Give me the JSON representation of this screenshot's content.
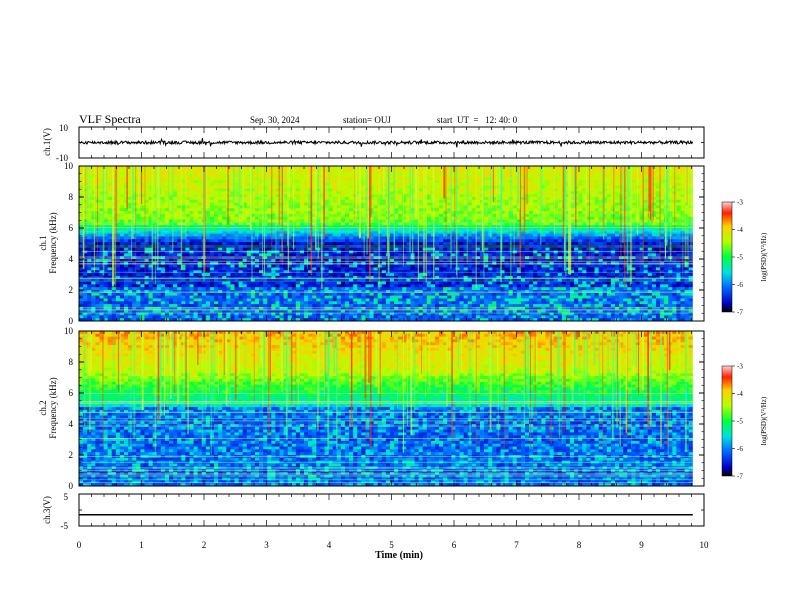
{
  "header": {
    "title": "VLF Spectra",
    "date": "Sep. 30, 2024",
    "station": "station= OUJ",
    "start": "start  UT  =   12: 40: 0"
  },
  "chart_data": [
    {
      "type": "line",
      "name": "ch1-waveform",
      "ylabel": "ch.1(V)",
      "ylim": [
        -10,
        10
      ],
      "yticks": [
        "10",
        "-10"
      ],
      "xlim": [
        0,
        10
      ],
      "baseline": 0
    },
    {
      "type": "heatmap",
      "name": "ch1-spectrogram",
      "ylabel_line1": "ch.1",
      "ylabel_line2": "Frequency (kHz)",
      "xlim": [
        0,
        10
      ],
      "ylim": [
        0,
        10
      ],
      "yticks": [
        "0",
        "2",
        "4",
        "6",
        "8",
        "10"
      ],
      "colorbar": {
        "label": "log(PSD)(V²/Hz)",
        "range": [
          -7,
          -3
        ],
        "ticks": [
          "-3",
          "-4",
          "-5",
          "-6",
          "-7"
        ]
      }
    },
    {
      "type": "heatmap",
      "name": "ch2-spectrogram",
      "ylabel_line1": "ch.2",
      "ylabel_line2": "Frequency (kHz)",
      "xlim": [
        0,
        10
      ],
      "ylim": [
        0,
        10
      ],
      "yticks": [
        "0",
        "2",
        "4",
        "6",
        "8",
        "10"
      ],
      "colorbar": {
        "label": "log(PSD)(V²/Hz)",
        "range": [
          -7,
          -3
        ],
        "ticks": [
          "-3",
          "-4",
          "-5",
          "-6",
          "-7"
        ]
      }
    },
    {
      "type": "line",
      "name": "ch3-waveform",
      "ylabel": "ch.3(V)",
      "ylim": [
        -5,
        5
      ],
      "yticks": [
        "5",
        "-5"
      ],
      "xlim": [
        0,
        10
      ],
      "baseline": -1.5
    }
  ],
  "xaxis": {
    "label": "Time (min)",
    "ticks": [
      "0",
      "1",
      "2",
      "3",
      "4",
      "5",
      "6",
      "7",
      "8",
      "9",
      "10"
    ],
    "data_end": 9.82
  },
  "colors": {
    "spectrum_low": "#000000",
    "spectrum_mid": "#00ff00",
    "spectrum_high": "#ff0000"
  }
}
